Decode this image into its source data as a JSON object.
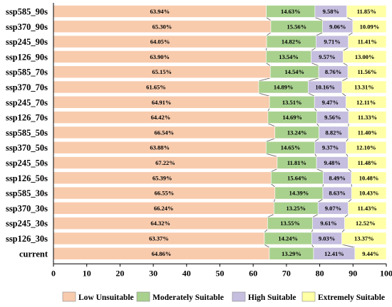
{
  "chart_data": {
    "type": "bar",
    "orientation": "horizontal",
    "stacked": true,
    "title": "",
    "xlabel": "",
    "ylabel": "",
    "xlim": [
      0,
      100
    ],
    "xticks": [
      0,
      10,
      20,
      30,
      40,
      50,
      60,
      70,
      80,
      90,
      100
    ],
    "grid": false,
    "legend_position": "bottom",
    "categories": [
      "ssp585_90s",
      "ssp370_90s",
      "ssp245_90s",
      "ssp126_90s",
      "ssp585_70s",
      "ssp370_70s",
      "ssp245_70s",
      "ssp126_70s",
      "ssp585_50s",
      "ssp370_50s",
      "ssp245_50s",
      "ssp126_50s",
      "ssp585_30s",
      "ssp370_30s",
      "ssp245_30s",
      "ssp126_30s",
      "current"
    ],
    "series": [
      {
        "name": "Low Unsuitable",
        "color": "#F8CBAD",
        "values": [
          63.94,
          65.3,
          64.05,
          63.9,
          65.15,
          61.65,
          64.91,
          64.42,
          66.54,
          63.88,
          67.22,
          65.39,
          66.55,
          66.24,
          64.32,
          63.37,
          64.86
        ],
        "labels": [
          "63.94%",
          "65.30%",
          "64.05%",
          "63.90%",
          "65.15%",
          "61.65%",
          "64.91%",
          "64.42%",
          "66.54%",
          "63.88%",
          "67.22%",
          "65.39%",
          "66.55%",
          "66.24%",
          "64.32%",
          "63.37%",
          "64.86%"
        ]
      },
      {
        "name": "Moderately Suitable",
        "color": "#A9D18E",
        "values": [
          14.63,
          15.56,
          14.82,
          13.54,
          14.54,
          14.89,
          13.51,
          14.69,
          13.24,
          14.65,
          11.81,
          15.64,
          14.39,
          13.25,
          13.55,
          14.24,
          13.29
        ],
        "labels": [
          "14.63%",
          "15.56%",
          "14.82%",
          "13.54%",
          "14.54%",
          "14.89%",
          "13.51%",
          "14.69%",
          "13.24%",
          "14.65%",
          "11.81%",
          "15.64%",
          "14.39%",
          "13.25%",
          "13.55%",
          "14.24%",
          "13.29%"
        ]
      },
      {
        "name": "High Suitable",
        "color": "#C5BEDE",
        "values": [
          9.58,
          9.06,
          9.71,
          9.57,
          8.76,
          10.16,
          9.47,
          9.56,
          8.82,
          9.37,
          9.48,
          8.49,
          8.63,
          9.07,
          9.61,
          9.03,
          12.41
        ],
        "labels": [
          "9.58%",
          "9.06%",
          "9.71%",
          "9.57%",
          "8.76%",
          "10.16%",
          "9.47%",
          "9.56%",
          "8.82%",
          "9.37%",
          "9.48%",
          "8.49%",
          "8.63%",
          "9.07%",
          "9.61%",
          "9.03%",
          "12.41%"
        ]
      },
      {
        "name": "Extremely Suitable",
        "color": "#FFFFA6",
        "values": [
          11.85,
          10.09,
          11.41,
          13.0,
          11.56,
          13.31,
          12.11,
          11.33,
          11.4,
          12.1,
          11.48,
          10.48,
          10.43,
          11.43,
          12.52,
          13.37,
          9.44
        ],
        "labels": [
          "11.85%",
          "10.09%",
          "11.41%",
          "13.00%",
          "11.56%",
          "13.31%",
          "12.11%",
          "11.33%",
          "11.40%",
          "12.10%",
          "11.48%",
          "10.48%",
          "10.43%",
          "11.43%",
          "12.52%",
          "13.37%",
          "9.44%"
        ]
      }
    ]
  }
}
